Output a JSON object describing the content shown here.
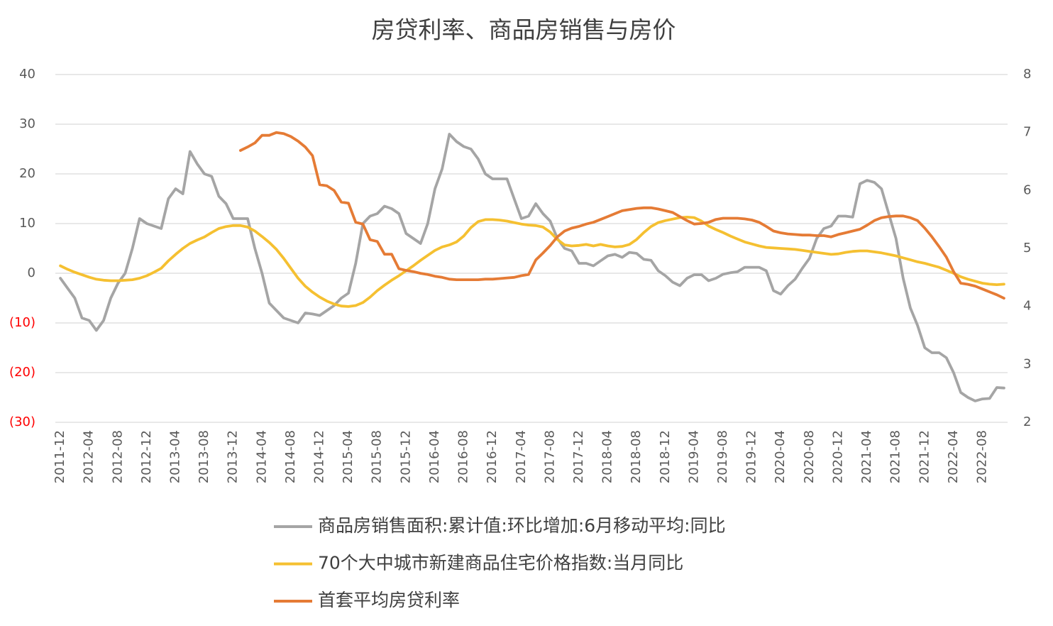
{
  "chart_data": {
    "type": "line",
    "title": "房贷利率、商品房销售与房价",
    "categories": [
      "2011-12",
      null,
      null,
      null,
      "2012-04",
      null,
      null,
      null,
      "2012-08",
      null,
      null,
      null,
      "2012-12",
      null,
      null,
      null,
      "2013-04",
      null,
      null,
      null,
      "2013-08",
      null,
      null,
      null,
      "2013-12",
      null,
      null,
      null,
      "2014-04",
      null,
      null,
      null,
      "2014-08",
      null,
      null,
      null,
      "2014-12",
      null,
      null,
      null,
      "2015-04",
      null,
      null,
      null,
      "2015-08",
      null,
      null,
      null,
      "2015-12",
      null,
      null,
      null,
      "2016-04",
      null,
      null,
      null,
      "2016-08",
      null,
      null,
      null,
      "2016-12",
      null,
      null,
      null,
      "2017-04",
      null,
      null,
      null,
      "2017-08",
      null,
      null,
      null,
      "2017-12",
      null,
      null,
      null,
      "2018-04",
      null,
      null,
      null,
      "2018-08",
      null,
      null,
      null,
      "2018-12",
      null,
      null,
      null,
      "2019-04",
      null,
      null,
      null,
      "2019-08",
      null,
      null,
      null,
      "2019-12",
      null,
      null,
      null,
      "2020-04",
      null,
      null,
      null,
      "2020-08",
      null,
      null,
      null,
      "2020-12",
      null,
      null,
      null,
      "2021-04",
      null,
      null,
      null,
      "2021-08",
      null,
      null,
      null,
      "2021-12",
      null,
      null,
      null,
      "2022-04",
      null,
      null,
      null,
      "2022-08",
      null,
      null,
      null
    ],
    "series": [
      {
        "name": "商品房销售面积:累计值:环比增加:6月移动平均:同比",
        "color": "#a5a5a5",
        "values": [
          -1,
          -3,
          -5,
          -9,
          -9.5,
          -11.5,
          -9.5,
          -5,
          -2,
          0,
          5,
          11,
          10,
          9.5,
          9,
          15,
          17,
          16,
          24.5,
          22,
          20,
          19.5,
          15.5,
          14,
          11,
          11,
          11,
          5,
          0,
          -6,
          -7.5,
          -9,
          -9.5,
          -10,
          -8,
          -8.2,
          -8.5,
          -7.5,
          -6.5,
          -5,
          -4,
          2,
          10,
          11.5,
          12,
          13.5,
          13,
          12,
          8,
          7,
          6,
          10,
          17,
          21,
          28,
          26.5,
          25.5,
          25,
          23,
          20,
          19,
          19,
          19,
          15,
          11,
          11.5,
          14,
          12,
          10.5,
          7,
          5,
          4.5,
          2,
          2,
          1.5,
          2.5,
          3.5,
          3.8,
          3.2,
          4.2,
          4,
          2.8,
          2.6,
          0.5,
          -0.5,
          -1.8,
          -2.5,
          -1,
          -0.3,
          -0.3,
          -1.5,
          -1,
          -0.2,
          0.1,
          0.3,
          1.2,
          1.2,
          1.2,
          0.5,
          -3.5,
          -4.2,
          -2.5,
          -1.2,
          1,
          3,
          7,
          9,
          9.5,
          11.5,
          11.5,
          11.3,
          18,
          18.7,
          18.3,
          17,
          12,
          7,
          -1,
          -7,
          -10.5,
          -15,
          -16,
          -16,
          -17,
          -20,
          -24,
          -25,
          -25.7,
          -25.3,
          -25.2,
          -23,
          -23.1
        ]
      },
      {
        "name": "70个大中城市新建商品住宅价格指数:当月同比",
        "color": "#f5c031",
        "values": [
          1.5,
          0.8,
          0.2,
          -0.3,
          -0.8,
          -1.2,
          -1.4,
          -1.5,
          -1.5,
          -1.4,
          -1.3,
          -1,
          -0.5,
          0.2,
          1,
          2.5,
          3.8,
          5,
          6,
          6.7,
          7.3,
          8.2,
          9,
          9.4,
          9.6,
          9.6,
          9.3,
          8.5,
          7.4,
          6.2,
          4.8,
          3,
          1,
          -1,
          -2.6,
          -3.8,
          -4.8,
          -5.6,
          -6.2,
          -6.6,
          -6.7,
          -6.5,
          -5.9,
          -4.8,
          -3.5,
          -2.4,
          -1.4,
          -0.5,
          0.5,
          1.5,
          2.6,
          3.6,
          4.6,
          5.3,
          5.7,
          6.3,
          7.5,
          9.2,
          10.4,
          10.8,
          10.8,
          10.7,
          10.5,
          10.2,
          9.9,
          9.7,
          9.6,
          9.3,
          8.3,
          6.8,
          5.7,
          5.5,
          5.6,
          5.8,
          5.5,
          5.8,
          5.5,
          5.3,
          5.4,
          5.8,
          6.8,
          8.2,
          9.4,
          10.2,
          10.6,
          10.9,
          11.2,
          11.3,
          11.2,
          10.5,
          9.5,
          8.8,
          8.2,
          7.5,
          6.9,
          6.3,
          5.9,
          5.5,
          5.2,
          5.1,
          5,
          4.9,
          4.8,
          4.6,
          4.4,
          4.2,
          4,
          3.8,
          3.9,
          4.2,
          4.4,
          4.5,
          4.5,
          4.3,
          4.1,
          3.8,
          3.5,
          3.1,
          2.7,
          2.3,
          2,
          1.6,
          1.2,
          0.6,
          0,
          -0.7,
          -1.2,
          -1.6,
          -2,
          -2.2,
          -2.3,
          -2.2
        ]
      },
      {
        "name": "首套平均房贷利率",
        "color": "#e57b35",
        "axis": "y2",
        "values": [
          null,
          null,
          null,
          null,
          null,
          null,
          null,
          null,
          null,
          null,
          null,
          null,
          null,
          null,
          null,
          null,
          null,
          null,
          null,
          null,
          null,
          null,
          null,
          null,
          null,
          6.69,
          6.75,
          6.82,
          6.95,
          6.95,
          7.0,
          6.98,
          6.93,
          6.85,
          6.75,
          6.6,
          6.1,
          6.08,
          6.0,
          5.8,
          5.78,
          5.45,
          5.42,
          5.15,
          5.12,
          4.9,
          4.9,
          4.65,
          4.62,
          4.6,
          4.57,
          4.55,
          4.52,
          4.5,
          4.47,
          4.46,
          4.46,
          4.46,
          4.46,
          4.47,
          4.47,
          4.48,
          4.49,
          4.5,
          4.53,
          4.55,
          4.8,
          4.92,
          5.05,
          5.2,
          5.3,
          5.35,
          5.38,
          5.42,
          5.45,
          5.5,
          5.55,
          5.6,
          5.65,
          5.67,
          5.69,
          5.7,
          5.7,
          5.68,
          5.65,
          5.62,
          5.55,
          5.48,
          5.42,
          5.43,
          5.45,
          5.5,
          5.52,
          5.52,
          5.52,
          5.51,
          5.49,
          5.45,
          5.38,
          5.3,
          5.27,
          5.25,
          5.24,
          5.23,
          5.23,
          5.22,
          5.22,
          5.2,
          5.24,
          5.27,
          5.3,
          5.33,
          5.4,
          5.48,
          5.53,
          5.55,
          5.56,
          5.56,
          5.53,
          5.48,
          5.35,
          5.2,
          5.03,
          4.85,
          4.6,
          4.4,
          4.38,
          4.35,
          4.3,
          4.25,
          4.2,
          4.14
        ]
      }
    ],
    "ylim": [
      -30,
      40
    ],
    "yticks": [
      {
        "value": -30,
        "label": "(30)"
      },
      {
        "value": -20,
        "label": "(20)"
      },
      {
        "value": -10,
        "label": "(10)"
      },
      0,
      10,
      20,
      30,
      40
    ],
    "y2lim": [
      2,
      8
    ],
    "y2ticks": [
      2,
      3,
      4,
      5,
      6,
      7,
      8
    ],
    "grid": true,
    "negative_tick_color": "#ff0000",
    "legend": "bottom"
  }
}
